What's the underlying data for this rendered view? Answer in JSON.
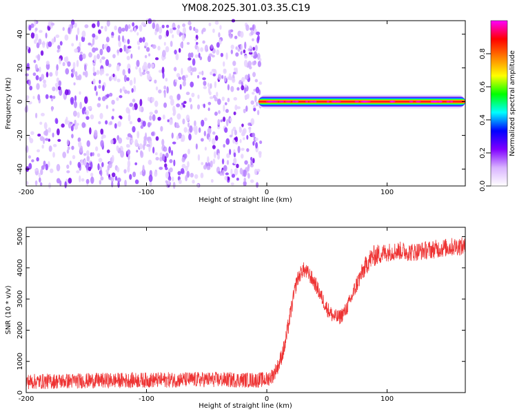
{
  "title": "YM08.2025.301.03.35.C19",
  "chart_data": [
    {
      "type": "heatmap",
      "xlabel": "Height of straight line (km)",
      "ylabel": "Frequency (Hz)",
      "xlim": [
        -200,
        165
      ],
      "ylim": [
        -50,
        48
      ],
      "xticks": [
        "-200",
        "-100",
        "0",
        "100"
      ],
      "xtick_values": [
        -200,
        -100,
        0,
        100
      ],
      "yticks": [
        "-40",
        "-20",
        "0",
        "20",
        "40"
      ],
      "ytick_values": [
        -40,
        -20,
        0,
        20,
        40
      ],
      "colorbar": {
        "label": "Normalized spectral amplitude",
        "range": [
          0,
          1
        ],
        "ticks": [
          "0.0",
          "0.2",
          "0.4",
          "0.6",
          "0.8"
        ],
        "tick_values": [
          0,
          0.2,
          0.4,
          0.6,
          0.8
        ],
        "colors": [
          "#ffffff",
          "#d9b3ff",
          "#8000ff",
          "#0000ff",
          "#00ffff",
          "#00ff00",
          "#ffff00",
          "#ff8000",
          "#ff0000",
          "#ff00ff"
        ]
      },
      "regions": [
        {
          "x_from": -200,
          "x_to": -5,
          "y_from": -50,
          "y_to": 48,
          "fill": "scattered low amplitude noise",
          "amplitude": [
            0.0,
            0.15
          ]
        },
        {
          "x_from": -7,
          "x_to": 165,
          "y_center": 0,
          "y_halfwidth": 2.5,
          "fill": "narrow band at 0 Hz",
          "amplitude_peak": 0.8
        }
      ],
      "grid": false
    },
    {
      "type": "line",
      "xlabel": "Height of straight line (km)",
      "ylabel": "SNR (10 * v/v)",
      "xlim": [
        -200,
        165
      ],
      "ylim": [
        0,
        5300
      ],
      "xticks": [
        "-200",
        "-100",
        "0",
        "100"
      ],
      "xtick_values": [
        -200,
        -100,
        0,
        100
      ],
      "yticks": [
        "0",
        "1000",
        "2000",
        "3000",
        "4000",
        "5000"
      ],
      "ytick_values": [
        0,
        1000,
        2000,
        3000,
        4000,
        5000
      ],
      "color": "#ee3333",
      "series": [
        {
          "x": [
            -200,
            -150,
            -100,
            -50,
            -10,
            0,
            5,
            10,
            15,
            20,
            25,
            30,
            35,
            40,
            45,
            50,
            55,
            60,
            65,
            70,
            75,
            80,
            85,
            90,
            100,
            110,
            120,
            130,
            140,
            150,
            160,
            165
          ],
          "y": [
            350,
            380,
            400,
            420,
            400,
            420,
            550,
            900,
            1500,
            2600,
            3600,
            3950,
            3800,
            3500,
            3100,
            2700,
            2450,
            2400,
            2600,
            3000,
            3500,
            3900,
            4250,
            4400,
            4500,
            4550,
            4500,
            4550,
            4600,
            4650,
            4700,
            4650
          ],
          "noise": [
            250,
            250,
            250,
            250,
            250,
            250,
            250,
            250,
            300,
            300,
            250,
            250,
            250,
            250,
            250,
            250,
            250,
            250,
            250,
            250,
            300,
            300,
            350,
            350,
            300,
            300,
            300,
            300,
            300,
            300,
            300,
            300
          ]
        }
      ],
      "grid": false
    }
  ]
}
